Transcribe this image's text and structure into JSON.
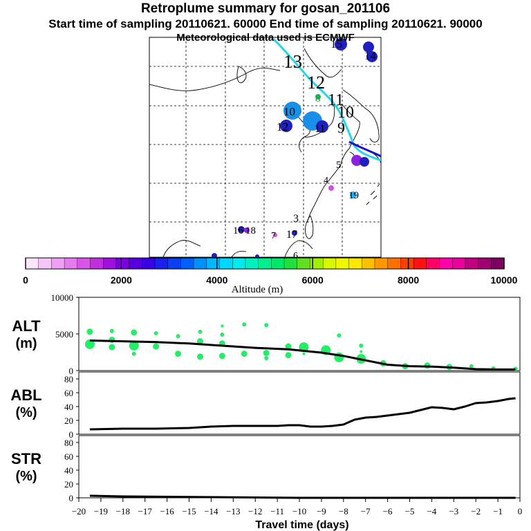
{
  "header": {
    "title": "Retroplume summary for gosan_201106",
    "sampling": "Start time of sampling 20110621. 60000     End time of sampling 20110621. 90000",
    "met": "Meteorological data used is ECMWF"
  },
  "colorbar": {
    "label": "Altitude (m)",
    "ticks": [
      "0",
      "2000",
      "4000",
      "6000",
      "8000",
      "10000"
    ],
    "colors": [
      "#fbe6fb",
      "#f5c6f7",
      "#eea0f2",
      "#e57cee",
      "#d855e8",
      "#c02ee0",
      "#9e10dd",
      "#7a00dd",
      "#5500dd",
      "#3a00e6",
      "#1a20f0",
      "#0a40f5",
      "#0060ff",
      "#0090ff",
      "#00b8ff",
      "#00d8ff",
      "#00ecec",
      "#00f0c0",
      "#00f090",
      "#00e868",
      "#20e040",
      "#60e020",
      "#a0f000",
      "#d8f800",
      "#f0f800",
      "#ffe800",
      "#ffc000",
      "#ff9800",
      "#ff7000",
      "#ff4000",
      "#ff1010",
      "#ff0066",
      "#ff00aa",
      "#e8009a",
      "#c00080",
      "#a00070",
      "#800060"
    ]
  },
  "map": {
    "labels": [
      {
        "text": "13",
        "color": "#000000"
      },
      {
        "text": "12",
        "color": "#000000"
      },
      {
        "text": "11",
        "color": "#000000"
      },
      {
        "text": "10",
        "color": "#000000"
      },
      {
        "text": "9",
        "color": "#000000"
      },
      {
        "text": "8",
        "color": "#1a9a3a"
      },
      {
        "text": "7",
        "color": "#000000"
      },
      {
        "text": "6",
        "color": "#000000"
      },
      {
        "text": "5",
        "color": "#000000"
      },
      {
        "text": "4",
        "color": "#000000"
      },
      {
        "text": "3",
        "color": "#000000"
      },
      {
        "text": "19",
        "color": "#000000"
      },
      {
        "text": "17",
        "color": "#000000"
      },
      {
        "text": "16",
        "color": "#000000"
      },
      {
        "text": "18",
        "color": "#000000"
      },
      {
        "text": "10",
        "color": "#000000"
      },
      {
        "text": "12",
        "color": "#000000"
      },
      {
        "text": "11",
        "color": "#000000"
      },
      {
        "text": "14",
        "color": "#000000"
      },
      {
        "text": "15",
        "color": "#000000"
      }
    ],
    "clusters": [
      {
        "color": "#1a8fe8",
        "size": "large"
      },
      {
        "color": "#1a8fe8",
        "size": "large"
      },
      {
        "color": "#2020c0",
        "size": "medium"
      },
      {
        "color": "#2020c0",
        "size": "medium"
      },
      {
        "color": "#2020c0",
        "size": "small"
      },
      {
        "color": "#9020e0",
        "size": "small"
      },
      {
        "color": "#20b0ff",
        "size": "small"
      },
      {
        "color": "#2020c0",
        "size": "small"
      }
    ]
  },
  "chart_data": [
    {
      "type": "line",
      "panel": "ALT",
      "label_line1": "ALT",
      "label_line2": "(m)",
      "ylabel": "ALT (m)",
      "ylim": [
        0,
        10000
      ],
      "yticks": [
        "10000",
        "5000",
        "0"
      ],
      "series": [
        {
          "name": "mean altitude",
          "x": [
            -19.5,
            -18,
            -16.5,
            -15,
            -13.5,
            -12,
            -10.5,
            -9,
            -8,
            -7,
            -6,
            -5,
            -4,
            -3,
            -2,
            -1,
            -0.2
          ],
          "values": [
            4100,
            4000,
            3900,
            3700,
            3400,
            3100,
            2900,
            2450,
            2000,
            1400,
            800,
            600,
            550,
            400,
            200,
            150,
            150
          ]
        }
      ],
      "scatter": [
        {
          "x": -19.5,
          "y": 5300,
          "s": "m"
        },
        {
          "x": -19.5,
          "y": 3600,
          "s": "l"
        },
        {
          "x": -18.5,
          "y": 5400,
          "s": "s"
        },
        {
          "x": -18.5,
          "y": 4200,
          "s": "m"
        },
        {
          "x": -18.5,
          "y": 3200,
          "s": "m"
        },
        {
          "x": -17.5,
          "y": 5200,
          "s": "m"
        },
        {
          "x": -17.5,
          "y": 3400,
          "s": "l"
        },
        {
          "x": -17.5,
          "y": 2300,
          "s": "s"
        },
        {
          "x": -16.5,
          "y": 5100,
          "s": "s"
        },
        {
          "x": -16.5,
          "y": 3300,
          "s": "m"
        },
        {
          "x": -15.5,
          "y": 4700,
          "s": "s"
        },
        {
          "x": -15.5,
          "y": 2300,
          "s": "m"
        },
        {
          "x": -14.5,
          "y": 5300,
          "s": "s"
        },
        {
          "x": -14.5,
          "y": 4000,
          "s": "m"
        },
        {
          "x": -14.5,
          "y": 1900,
          "s": "m"
        },
        {
          "x": -13.5,
          "y": 6100,
          "s": "xs"
        },
        {
          "x": -13.5,
          "y": 4900,
          "s": "s"
        },
        {
          "x": -13.5,
          "y": 3700,
          "s": "m"
        },
        {
          "x": -13.5,
          "y": 2000,
          "s": "m"
        },
        {
          "x": -12.5,
          "y": 6300,
          "s": "s"
        },
        {
          "x": -12.5,
          "y": 2300,
          "s": "m"
        },
        {
          "x": -11.5,
          "y": 6200,
          "s": "s"
        },
        {
          "x": -11.5,
          "y": 2400,
          "s": "m"
        },
        {
          "x": -11.5,
          "y": 1700,
          "s": "s"
        },
        {
          "x": -10.5,
          "y": 3300,
          "s": "m"
        },
        {
          "x": -10.5,
          "y": 2100,
          "s": "m"
        },
        {
          "x": -9.8,
          "y": 3200,
          "s": "l"
        },
        {
          "x": -9.8,
          "y": 2300,
          "s": "xs"
        },
        {
          "x": -8.8,
          "y": 2800,
          "s": "l"
        },
        {
          "x": -8.2,
          "y": 4800,
          "s": "s"
        },
        {
          "x": -8.2,
          "y": 1800,
          "s": "l"
        },
        {
          "x": -7.2,
          "y": 3400,
          "s": "s"
        },
        {
          "x": -7.2,
          "y": 2600,
          "s": "xs"
        },
        {
          "x": -7.2,
          "y": 1600,
          "s": "l"
        },
        {
          "x": -6.2,
          "y": 1000,
          "s": "m"
        },
        {
          "x": -5.2,
          "y": 600,
          "s": "m"
        },
        {
          "x": -4.2,
          "y": 700,
          "s": "m"
        },
        {
          "x": -3.2,
          "y": 500,
          "s": "m"
        },
        {
          "x": -2.2,
          "y": 600,
          "s": "s"
        },
        {
          "x": -1.2,
          "y": 300,
          "s": "s"
        },
        {
          "x": -0.2,
          "y": 250,
          "s": "s"
        }
      ]
    },
    {
      "type": "line",
      "panel": "ABL",
      "label_line1": "ABL",
      "label_line2": "(%)",
      "ylabel": "ABL (%)",
      "ylim": [
        0,
        90
      ],
      "yticks": [
        "80",
        "60",
        "40",
        "20",
        "0"
      ],
      "series": [
        {
          "name": "ABL fraction",
          "x": [
            -19.5,
            -18,
            -16.5,
            -15,
            -14,
            -13,
            -12,
            -11,
            -10.5,
            -10,
            -9.5,
            -9,
            -8.5,
            -8,
            -7.5,
            -7,
            -6.5,
            -6,
            -5.5,
            -5,
            -4.5,
            -4,
            -3.5,
            -3,
            -2.5,
            -2,
            -1.5,
            -1,
            -0.5,
            -0.2
          ],
          "values": [
            7,
            8,
            8,
            9,
            11,
            12,
            12,
            12,
            13,
            13,
            11,
            11,
            12,
            14,
            21,
            24,
            25,
            27,
            29,
            31,
            35,
            39,
            38,
            36,
            40,
            45,
            46,
            48,
            51,
            52
          ]
        }
      ]
    },
    {
      "type": "line",
      "panel": "STR",
      "label_line1": "STR",
      "label_line2": "(%)",
      "ylabel": "STR (%)",
      "ylim": [
        0,
        90
      ],
      "yticks": [
        "80",
        "60",
        "40",
        "20",
        "0"
      ],
      "xlabel": "Travel time (days)",
      "xlim": [
        -20,
        0
      ],
      "xticks": [
        "−20",
        "−19",
        "−18",
        "−17",
        "−16",
        "−15",
        "−14",
        "−13",
        "−12",
        "−11",
        "−10",
        "−9",
        "−8",
        "−7",
        "−6",
        "−5",
        "−4",
        "−3",
        "−2",
        "−1",
        "0"
      ],
      "series": [
        {
          "name": "stratospheric fraction",
          "x": [
            -19.5,
            -18,
            -16,
            -14,
            -12,
            -10,
            -8,
            -6,
            -4,
            -2,
            -0.2
          ],
          "values": [
            3,
            2,
            1.5,
            1,
            0.5,
            0,
            0,
            0,
            0,
            0,
            0
          ]
        }
      ]
    }
  ]
}
